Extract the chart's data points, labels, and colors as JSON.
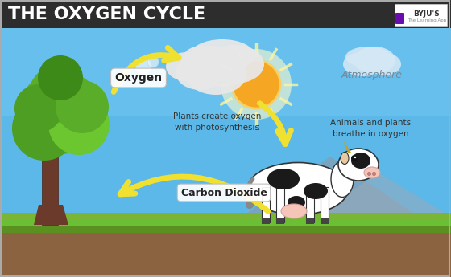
{
  "title": "THE OXYGEN CYCLE",
  "bg_sky_color": "#5bb8e8",
  "header_bg": "#2d2d2d",
  "header_text_color": "#ffffff",
  "title_fontsize": 16,
  "arrow_color": "#f0e030",
  "label_oxygen": "Oxygen",
  "label_co2": "Carbon Dioxide",
  "label_atmosphere": "Atmosphere",
  "label_photosynthesis": "Plants create oxygen\nwith photosynthesis",
  "label_breathe": "Animals and plants\nbreathe in oxygen",
  "byju_text": "BYJU'S",
  "byju_subtext": "The Learning App",
  "ground_green": "#7ab535",
  "ground_dark_green": "#5a9020",
  "dirt_color": "#8b6340",
  "tree_trunk": "#6b3a2a",
  "tree_green1": "#5aad28",
  "tree_green2": "#4d9e22",
  "tree_green3": "#6bc630",
  "sun_color": "#f5a623",
  "cloud_color": "#e8e8e8",
  "hill_color": "#8a9aaa"
}
